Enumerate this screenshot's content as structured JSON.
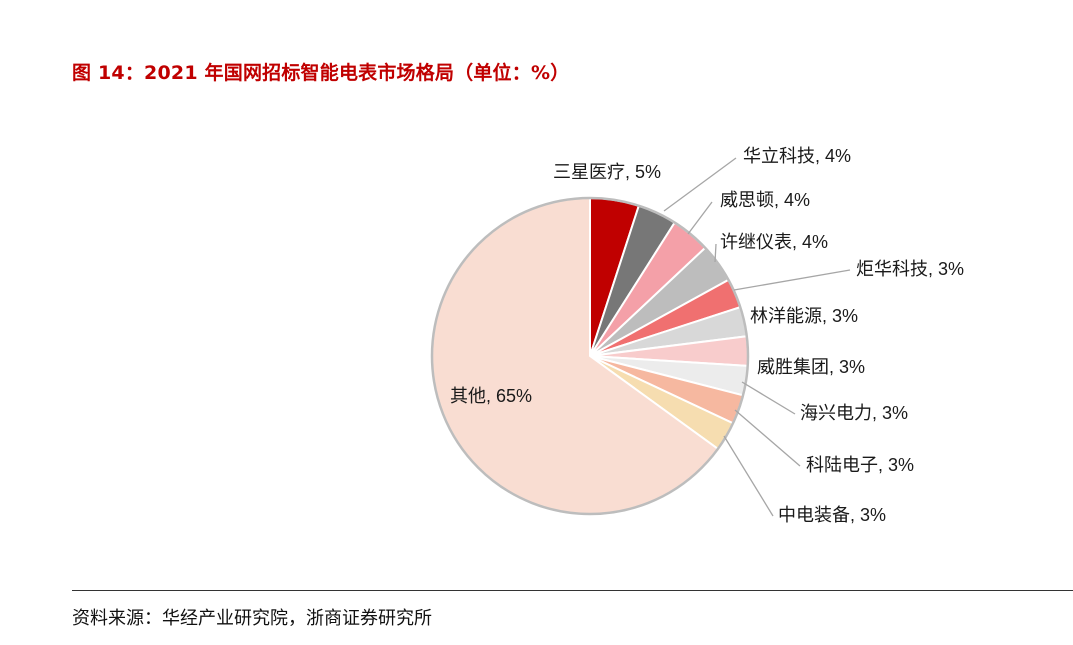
{
  "header": {
    "title": "图 14：2021 年国网招标智能电表市场格局（单位：%）"
  },
  "chart_data": {
    "type": "pie",
    "title": "图 14：2021 年国网招标智能电表市场格局（单位：%）",
    "slices": [
      {
        "name": "三星医疗",
        "value": 5,
        "label": "三星医疗, 5%",
        "color": "#c00000"
      },
      {
        "name": "华立科技",
        "value": 4,
        "label": "华立科技, 4%",
        "color": "#777777"
      },
      {
        "name": "威思顿",
        "value": 4,
        "label": "威思顿, 4%",
        "color": "#f4a0a8"
      },
      {
        "name": "许继仪表",
        "value": 4,
        "label": "许继仪表, 4%",
        "color": "#bdbdbd"
      },
      {
        "name": "炬华科技",
        "value": 3,
        "label": "炬华科技, 3%",
        "color": "#f07070"
      },
      {
        "name": "林洋能源",
        "value": 3,
        "label": "林洋能源, 3%",
        "color": "#d8d8d8"
      },
      {
        "name": "威胜集团",
        "value": 3,
        "label": "威胜集团, 3%",
        "color": "#f8cccc"
      },
      {
        "name": "海兴电力",
        "value": 3,
        "label": "海兴电力, 3%",
        "color": "#ececec"
      },
      {
        "name": "科陆电子",
        "value": 3,
        "label": "科陆电子, 3%",
        "color": "#f6b8a0"
      },
      {
        "name": "中电装备",
        "value": 3,
        "label": "中电装备, 3%",
        "color": "#f6ddb0"
      },
      {
        "name": "其他",
        "value": 65,
        "label": "其他, 65%",
        "color": "#f9ddd2"
      }
    ]
  },
  "footer": {
    "source": "资料来源：华经产业研究院，浙商证券研究所"
  }
}
